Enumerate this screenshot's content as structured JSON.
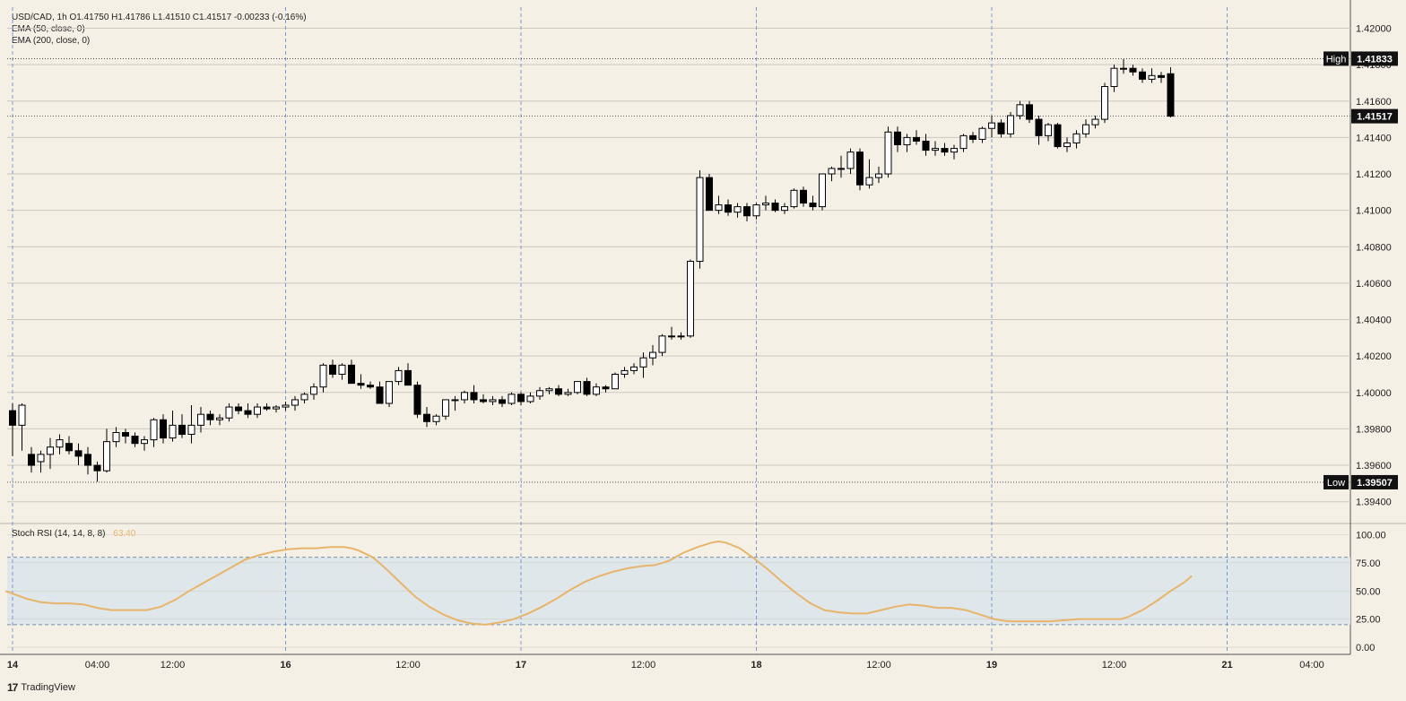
{
  "header": {
    "symbol_line": "USD/CAD, 1h  O1.41750  H1.41786  L1.41510  C1.41517  -0.00233 (-0.16%)",
    "ema50": "EMA (50, close, 0)",
    "ema200": "EMA (200, close, 0)"
  },
  "footer": {
    "brand": "TradingView",
    "logo": "17"
  },
  "colors": {
    "background": "#f5f0e6",
    "up_candle": "#ffffff",
    "down_candle": "#000000",
    "stoch_line": "#e8b46a",
    "stoch_band": "#dfe7ea"
  },
  "chart_data": [
    {
      "type": "candlestick",
      "title": "USD/CAD, 1h",
      "y_ticks": [
        "1.39400",
        "1.39600",
        "1.39800",
        "1.40000",
        "1.40200",
        "1.40400",
        "1.40600",
        "1.40800",
        "1.41000",
        "1.41200",
        "1.41400",
        "1.41600",
        "1.41800",
        "1.42000"
      ],
      "ylim": [
        1.3928,
        1.4215
      ],
      "x_ticks": [
        {
          "label": "14",
          "bar": 0,
          "bold": true
        },
        {
          "label": "04:00",
          "bar": 9,
          "bold": false
        },
        {
          "label": "12:00",
          "bar": 17,
          "bold": false
        },
        {
          "label": "16",
          "bar": 29,
          "bold": true
        },
        {
          "label": "12:00",
          "bar": 42,
          "bold": false
        },
        {
          "label": "17",
          "bar": 54,
          "bold": true
        },
        {
          "label": "12:00",
          "bar": 67,
          "bold": false
        },
        {
          "label": "18",
          "bar": 79,
          "bold": true
        },
        {
          "label": "12:00",
          "bar": 92,
          "bold": false
        },
        {
          "label": "19",
          "bar": 104,
          "bold": true
        },
        {
          "label": "12:00",
          "bar": 117,
          "bold": false
        },
        {
          "label": "21",
          "bar": 129,
          "bold": true
        },
        {
          "label": "04:00",
          "bar": 138,
          "bold": false
        }
      ],
      "markers": [
        {
          "label": "High",
          "value": "1.41833",
          "price": 1.41833
        },
        {
          "label": "",
          "value": "1.41517",
          "price": 1.41517
        },
        {
          "label": "Low",
          "value": "1.39507",
          "price": 1.39507
        }
      ],
      "ohlc": [
        [
          1.399,
          1.3994,
          1.3965,
          1.3982
        ],
        [
          1.3982,
          1.3994,
          1.3968,
          1.3993
        ],
        [
          1.3966,
          1.397,
          1.3956,
          1.396
        ],
        [
          1.3962,
          1.3968,
          1.3956,
          1.3966
        ],
        [
          1.3966,
          1.3975,
          1.3958,
          1.397
        ],
        [
          1.397,
          1.3977,
          1.3966,
          1.3974
        ],
        [
          1.3972,
          1.3976,
          1.3966,
          1.3968
        ],
        [
          1.3968,
          1.3972,
          1.396,
          1.3965
        ],
        [
          1.3966,
          1.397,
          1.3955,
          1.396
        ],
        [
          1.396,
          1.3962,
          1.3951,
          1.3957
        ],
        [
          1.3957,
          1.398,
          1.3956,
          1.3973
        ],
        [
          1.3973,
          1.3981,
          1.397,
          1.3978
        ],
        [
          1.3978,
          1.398,
          1.3972,
          1.3976
        ],
        [
          1.3976,
          1.3978,
          1.397,
          1.3972
        ],
        [
          1.3972,
          1.3976,
          1.3968,
          1.3974
        ],
        [
          1.3974,
          1.3986,
          1.397,
          1.3985
        ],
        [
          1.3985,
          1.3988,
          1.3972,
          1.3975
        ],
        [
          1.3975,
          1.399,
          1.3973,
          1.3982
        ],
        [
          1.3982,
          1.3988,
          1.3975,
          1.3977
        ],
        [
          1.3977,
          1.3993,
          1.3972,
          1.3982
        ],
        [
          1.3982,
          1.3992,
          1.3978,
          1.3988
        ],
        [
          1.3988,
          1.399,
          1.3982,
          1.3985
        ],
        [
          1.3985,
          1.3988,
          1.3982,
          1.3986
        ],
        [
          1.3986,
          1.3994,
          1.3984,
          1.3992
        ],
        [
          1.3992,
          1.3994,
          1.3988,
          1.399
        ],
        [
          1.399,
          1.3994,
          1.3986,
          1.3988
        ],
        [
          1.3988,
          1.3994,
          1.3986,
          1.3992
        ],
        [
          1.3992,
          1.3994,
          1.399,
          1.3991
        ],
        [
          1.3991,
          1.3993,
          1.3989,
          1.3992
        ],
        [
          1.3992,
          1.3995,
          1.399,
          1.3993
        ],
        [
          1.3993,
          1.3998,
          1.399,
          1.3996
        ],
        [
          1.3996,
          1.4,
          1.3994,
          1.3999
        ],
        [
          1.3999,
          1.4005,
          1.3996,
          1.4003
        ],
        [
          1.4003,
          1.4016,
          1.4,
          1.4015
        ],
        [
          1.4015,
          1.4018,
          1.4008,
          1.401
        ],
        [
          1.401,
          1.4016,
          1.4007,
          1.4015
        ],
        [
          1.4015,
          1.4018,
          1.4005,
          1.4005
        ],
        [
          1.4005,
          1.401,
          1.4002,
          1.4004
        ],
        [
          1.4004,
          1.4006,
          1.4002,
          1.4003
        ],
        [
          1.4003,
          1.4006,
          1.3994,
          1.3994
        ],
        [
          1.3994,
          1.4006,
          1.3992,
          1.4006
        ],
        [
          1.4006,
          1.4014,
          1.4004,
          1.4012
        ],
        [
          1.4012,
          1.4016,
          1.4004,
          1.4004
        ],
        [
          1.4004,
          1.4006,
          1.3986,
          1.3988
        ],
        [
          1.3988,
          1.3992,
          1.3981,
          1.3984
        ],
        [
          1.3984,
          1.3988,
          1.3982,
          1.3987
        ],
        [
          1.3987,
          1.3996,
          1.3985,
          1.3996
        ],
        [
          1.3996,
          1.3998,
          1.399,
          1.3996
        ],
        [
          1.3996,
          1.4001,
          1.3994,
          1.4
        ],
        [
          1.4,
          1.4004,
          1.3994,
          1.3996
        ],
        [
          1.3996,
          1.3999,
          1.3994,
          1.3995
        ],
        [
          1.3995,
          1.3998,
          1.3993,
          1.3996
        ],
        [
          1.3996,
          1.3998,
          1.3992,
          1.3994
        ],
        [
          1.3994,
          1.4,
          1.3993,
          1.3999
        ],
        [
          1.3999,
          1.4,
          1.3993,
          1.3995
        ],
        [
          1.3995,
          1.4,
          1.3994,
          1.3998
        ],
        [
          1.3998,
          1.4003,
          1.3996,
          1.4001
        ],
        [
          1.4001,
          1.4003,
          1.3999,
          1.4002
        ],
        [
          1.4002,
          1.4004,
          1.3998,
          1.3999
        ],
        [
          1.3999,
          1.4002,
          1.3998,
          1.4
        ],
        [
          1.4,
          1.4006,
          1.3999,
          1.4006
        ],
        [
          1.4006,
          1.4008,
          1.3998,
          1.3999
        ],
        [
          1.3999,
          1.4005,
          1.3998,
          1.4003
        ],
        [
          1.4003,
          1.4004,
          1.4,
          1.4002
        ],
        [
          1.4002,
          1.4011,
          1.4002,
          1.401
        ],
        [
          1.401,
          1.4014,
          1.4008,
          1.4012
        ],
        [
          1.4012,
          1.4016,
          1.401,
          1.4014
        ],
        [
          1.4014,
          1.4022,
          1.4008,
          1.4019
        ],
        [
          1.4019,
          1.4026,
          1.4015,
          1.4022
        ],
        [
          1.4022,
          1.4032,
          1.402,
          1.4031
        ],
        [
          1.4031,
          1.4036,
          1.4029,
          1.4031
        ],
        [
          1.4031,
          1.4033,
          1.4029,
          1.4031
        ],
        [
          1.4031,
          1.4073,
          1.403,
          1.4072
        ],
        [
          1.4072,
          1.4122,
          1.4068,
          1.4118
        ],
        [
          1.4118,
          1.412,
          1.41,
          1.41
        ],
        [
          1.41,
          1.4108,
          1.4098,
          1.4103
        ],
        [
          1.4103,
          1.4106,
          1.4097,
          1.4099
        ],
        [
          1.4099,
          1.4104,
          1.4096,
          1.4102
        ],
        [
          1.4102,
          1.4104,
          1.4094,
          1.4097
        ],
        [
          1.4097,
          1.4104,
          1.4095,
          1.4103
        ],
        [
          1.4103,
          1.4108,
          1.41,
          1.4104
        ],
        [
          1.4104,
          1.4106,
          1.4099,
          1.41
        ],
        [
          1.41,
          1.4104,
          1.4098,
          1.4102
        ],
        [
          1.4102,
          1.4112,
          1.4101,
          1.4111
        ],
        [
          1.4111,
          1.4113,
          1.4102,
          1.4104
        ],
        [
          1.4104,
          1.4108,
          1.41,
          1.4102
        ],
        [
          1.4102,
          1.412,
          1.41,
          1.412
        ],
        [
          1.412,
          1.4124,
          1.4116,
          1.4123
        ],
        [
          1.4123,
          1.413,
          1.4118,
          1.4123
        ],
        [
          1.4123,
          1.4134,
          1.412,
          1.4132
        ],
        [
          1.4132,
          1.4134,
          1.4111,
          1.4114
        ],
        [
          1.4114,
          1.4128,
          1.4112,
          1.4118
        ],
        [
          1.4118,
          1.4124,
          1.4115,
          1.412
        ],
        [
          1.412,
          1.4146,
          1.4118,
          1.4143
        ],
        [
          1.4143,
          1.4146,
          1.4132,
          1.4136
        ],
        [
          1.4136,
          1.4142,
          1.4132,
          1.414
        ],
        [
          1.414,
          1.4144,
          1.4136,
          1.4138
        ],
        [
          1.4138,
          1.4142,
          1.413,
          1.4133
        ],
        [
          1.4133,
          1.4138,
          1.413,
          1.4134
        ],
        [
          1.4134,
          1.4137,
          1.413,
          1.4132
        ],
        [
          1.4132,
          1.4136,
          1.4128,
          1.4134
        ],
        [
          1.4134,
          1.4142,
          1.4132,
          1.4141
        ],
        [
          1.4141,
          1.4143,
          1.4137,
          1.4139
        ],
        [
          1.4139,
          1.4146,
          1.4137,
          1.4145
        ],
        [
          1.4145,
          1.4152,
          1.414,
          1.4148
        ],
        [
          1.4148,
          1.415,
          1.414,
          1.4142
        ],
        [
          1.4142,
          1.4154,
          1.414,
          1.4152
        ],
        [
          1.4152,
          1.416,
          1.415,
          1.4158
        ],
        [
          1.4158,
          1.416,
          1.4148,
          1.415
        ],
        [
          1.415,
          1.4152,
          1.4136,
          1.4141
        ],
        [
          1.4141,
          1.4148,
          1.4138,
          1.4147
        ],
        [
          1.4147,
          1.4148,
          1.4134,
          1.4135
        ],
        [
          1.4135,
          1.414,
          1.4132,
          1.4137
        ],
        [
          1.4137,
          1.4144,
          1.4134,
          1.4142
        ],
        [
          1.4142,
          1.415,
          1.414,
          1.4147
        ],
        [
          1.4147,
          1.4152,
          1.4145,
          1.415
        ],
        [
          1.415,
          1.417,
          1.4148,
          1.4168
        ],
        [
          1.4168,
          1.418,
          1.4165,
          1.4178
        ],
        [
          1.4178,
          1.4183,
          1.4175,
          1.4178
        ],
        [
          1.4178,
          1.418,
          1.4174,
          1.4176
        ],
        [
          1.4176,
          1.4178,
          1.417,
          1.4172
        ],
        [
          1.4172,
          1.4178,
          1.417,
          1.4174
        ],
        [
          1.4174,
          1.4176,
          1.417,
          1.4173
        ],
        [
          1.4175,
          1.41786,
          1.4151,
          1.41517
        ]
      ]
    },
    {
      "type": "line",
      "title": "Stoch RSI (14, 14, 8, 8)",
      "last_value": "63.40",
      "y_ticks": [
        "0.00",
        "25.00",
        "50.00",
        "75.00",
        "100.00"
      ],
      "ylim": [
        0,
        100
      ],
      "band": [
        20,
        80
      ],
      "series": [
        {
          "points": [
            [
              -1,
              50
            ],
            [
              2,
              43
            ],
            [
              4,
              40
            ],
            [
              6,
              39
            ],
            [
              8,
              39
            ],
            [
              10,
              38
            ],
            [
              12,
              35
            ],
            [
              14,
              33
            ],
            [
              16,
              33
            ],
            [
              18,
              33
            ],
            [
              19,
              33
            ],
            [
              21,
              36
            ],
            [
              23,
              42
            ],
            [
              25,
              50
            ],
            [
              27,
              57
            ],
            [
              29,
              64
            ],
            [
              31,
              71
            ],
            [
              33,
              78
            ],
            [
              35,
              82
            ],
            [
              37,
              85
            ],
            [
              39,
              87
            ],
            [
              41,
              88
            ],
            [
              43,
              88
            ],
            [
              45,
              89
            ],
            [
              47,
              89
            ],
            [
              48,
              88
            ],
            [
              49,
              86
            ],
            [
              51,
              80
            ],
            [
              53,
              69
            ],
            [
              55,
              57
            ],
            [
              57,
              45
            ],
            [
              59,
              36
            ],
            [
              61,
              29
            ],
            [
              63,
              24
            ],
            [
              65,
              21
            ],
            [
              67,
              20
            ],
            [
              69,
              22
            ],
            [
              71,
              25
            ],
            [
              73,
              30
            ],
            [
              75,
              36
            ],
            [
              77,
              43
            ],
            [
              79,
              51
            ],
            [
              81,
              58
            ],
            [
              83,
              63
            ],
            [
              85,
              67
            ],
            [
              87,
              70
            ],
            [
              89,
              72
            ],
            [
              91,
              73
            ],
            [
              93,
              77
            ],
            [
              95,
              84
            ],
            [
              97,
              89
            ],
            [
              99,
              93
            ],
            [
              100,
              94
            ],
            [
              101,
              93
            ],
            [
              103,
              88
            ],
            [
              105,
              79
            ],
            [
              107,
              69
            ],
            [
              109,
              58
            ],
            [
              111,
              48
            ],
            [
              113,
              39
            ],
            [
              115,
              33
            ],
            [
              117,
              31
            ],
            [
              119,
              30
            ],
            [
              121,
              30
            ],
            [
              123,
              33
            ],
            [
              125,
              36
            ],
            [
              127,
              38
            ],
            [
              129,
              37
            ],
            [
              131,
              35
            ],
            [
              133,
              35
            ],
            [
              135,
              33
            ],
            [
              137,
              29
            ],
            [
              139,
              25
            ],
            [
              141,
              23
            ],
            [
              143,
              23
            ],
            [
              145,
              23
            ],
            [
              147,
              23
            ],
            [
              149,
              24
            ],
            [
              151,
              25
            ],
            [
              153,
              25
            ],
            [
              155,
              25
            ],
            [
              157,
              25
            ],
            [
              158,
              27
            ],
            [
              160,
              33
            ],
            [
              162,
              41
            ],
            [
              164,
              50
            ],
            [
              166,
              58
            ],
            [
              167,
              63.4
            ]
          ]
        }
      ]
    }
  ]
}
